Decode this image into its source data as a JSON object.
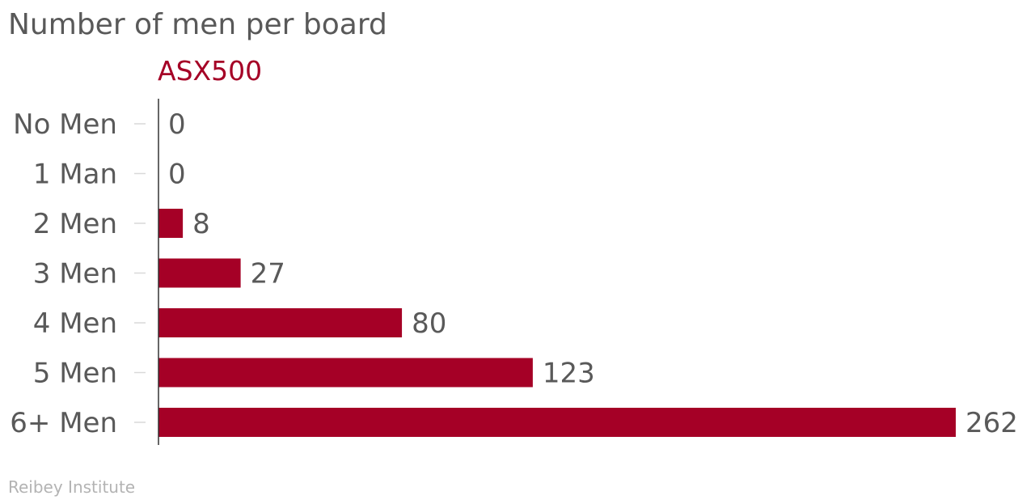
{
  "title": "Number of men per board",
  "series_name": "ASX500",
  "source": "Reibey Institute",
  "colors": {
    "bar": "#a50026",
    "axis": "#333333",
    "tick": "#d9d9d9",
    "text": "#595959"
  },
  "chart_data": {
    "type": "bar",
    "orientation": "horizontal",
    "categories": [
      "No Men",
      "1 Man",
      "2 Men",
      "3 Men",
      "4 Men",
      "5 Men",
      "6+ Men"
    ],
    "series": [
      {
        "name": "ASX500",
        "values": [
          0,
          0,
          8,
          27,
          80,
          123,
          262
        ]
      }
    ],
    "data_labels": [
      "0",
      "0",
      "8",
      "27",
      "80",
      "123",
      "262"
    ],
    "xlim": [
      0,
      262
    ],
    "grid": false,
    "legend": "none"
  }
}
